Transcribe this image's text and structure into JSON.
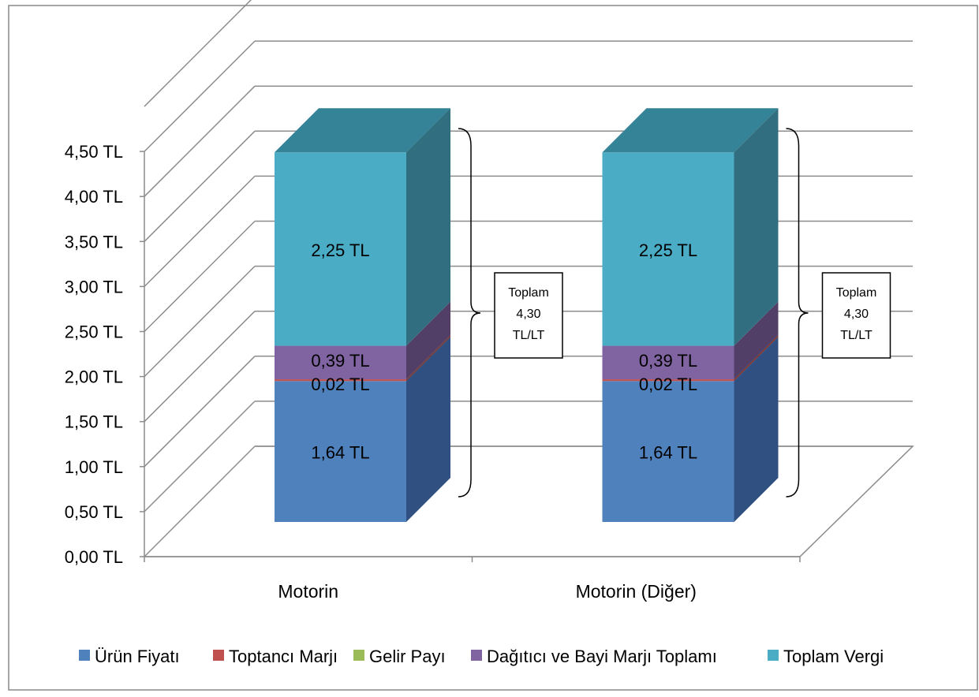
{
  "chart_data": {
    "type": "bar",
    "stacked": true,
    "three_d": true,
    "categories": [
      "Motorin",
      "Motorin (Diğer)"
    ],
    "series": [
      {
        "name": "Ürün Fiyatı",
        "values": [
          1.64,
          1.64
        ],
        "labels": [
          "1,64 TL",
          "1,64 TL"
        ]
      },
      {
        "name": "Toptancı Marjı",
        "values": [
          0.02,
          0.02
        ],
        "labels": [
          "0,02 TL",
          "0,02 TL"
        ]
      },
      {
        "name": "Gelir Payı",
        "values": [
          0,
          0
        ],
        "labels": [
          "",
          ""
        ]
      },
      {
        "name": "Dağıtıcı ve Bayi Marjı Toplamı",
        "values": [
          0.39,
          0.39
        ],
        "labels": [
          "0,39 TL",
          "0,39 TL"
        ]
      },
      {
        "name": "Toplam Vergi",
        "values": [
          2.25,
          2.25
        ],
        "labels": [
          "2,25 TL",
          "2,25 TL"
        ]
      }
    ],
    "ylim": [
      0,
      4.5
    ],
    "yticks": [
      "0,00 TL",
      "0,50 TL",
      "1,00 TL",
      "1,50 TL",
      "2,00 TL",
      "2,50 TL",
      "3,00 TL",
      "3,50 TL",
      "4,00 TL",
      "4,50 TL"
    ],
    "grid": true,
    "legend_position": "bottom",
    "annotations": [
      {
        "category": "Motorin",
        "lines": [
          "Toplam",
          "4,30",
          "TL/LT"
        ]
      },
      {
        "category": "Motorin (Diğer)",
        "lines": [
          "Toplam",
          "4,30",
          "TL/LT"
        ]
      }
    ]
  },
  "colors": {
    "Ürün Fiyatı": {
      "front": "#4f81bd",
      "top": "#3a6090",
      "side": "#2f5080"
    },
    "Toptancı Marjı": {
      "front": "#c0504d",
      "top": "#8e3b39",
      "side": "#7a3331"
    },
    "Gelir Payı": {
      "front": "#9bbb59",
      "top": "#728a42",
      "side": "#637838"
    },
    "Dağıtıcı ve Bayi Marjı Toplamı": {
      "front": "#8064a2",
      "top": "#5f4a78",
      "side": "#523f68"
    },
    "Toplam Vergi": {
      "front": "#4bacc6",
      "top": "#358397",
      "side": "#316e80"
    },
    "grid": "#8c8c8c",
    "text": "#000000",
    "border": "#888888"
  }
}
